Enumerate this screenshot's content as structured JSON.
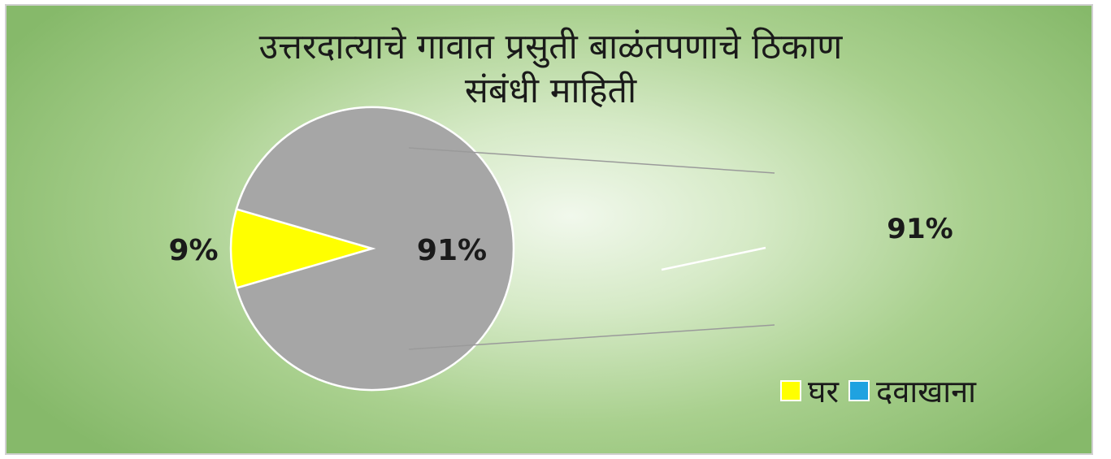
{
  "chart_data": {
    "type": "pie",
    "title_lines": [
      "उत्तरदात्याचे गावात प्रसुती बाळंतपणाचे ठिकाण",
      "संबंधी माहिती"
    ],
    "slices": [
      {
        "label": "घर",
        "value": 9,
        "display": "9%",
        "color": "#ffff00"
      },
      {
        "label": "दवाखाना",
        "value": 91,
        "display": "91%",
        "color": "#a6a6a6"
      }
    ],
    "secondary_label": "91%",
    "legend": [
      {
        "label": "घर",
        "color": "#ffff00"
      },
      {
        "label": "दवाखाना",
        "color": "#1fa2e0"
      }
    ],
    "legend_position": "bottom-right"
  }
}
